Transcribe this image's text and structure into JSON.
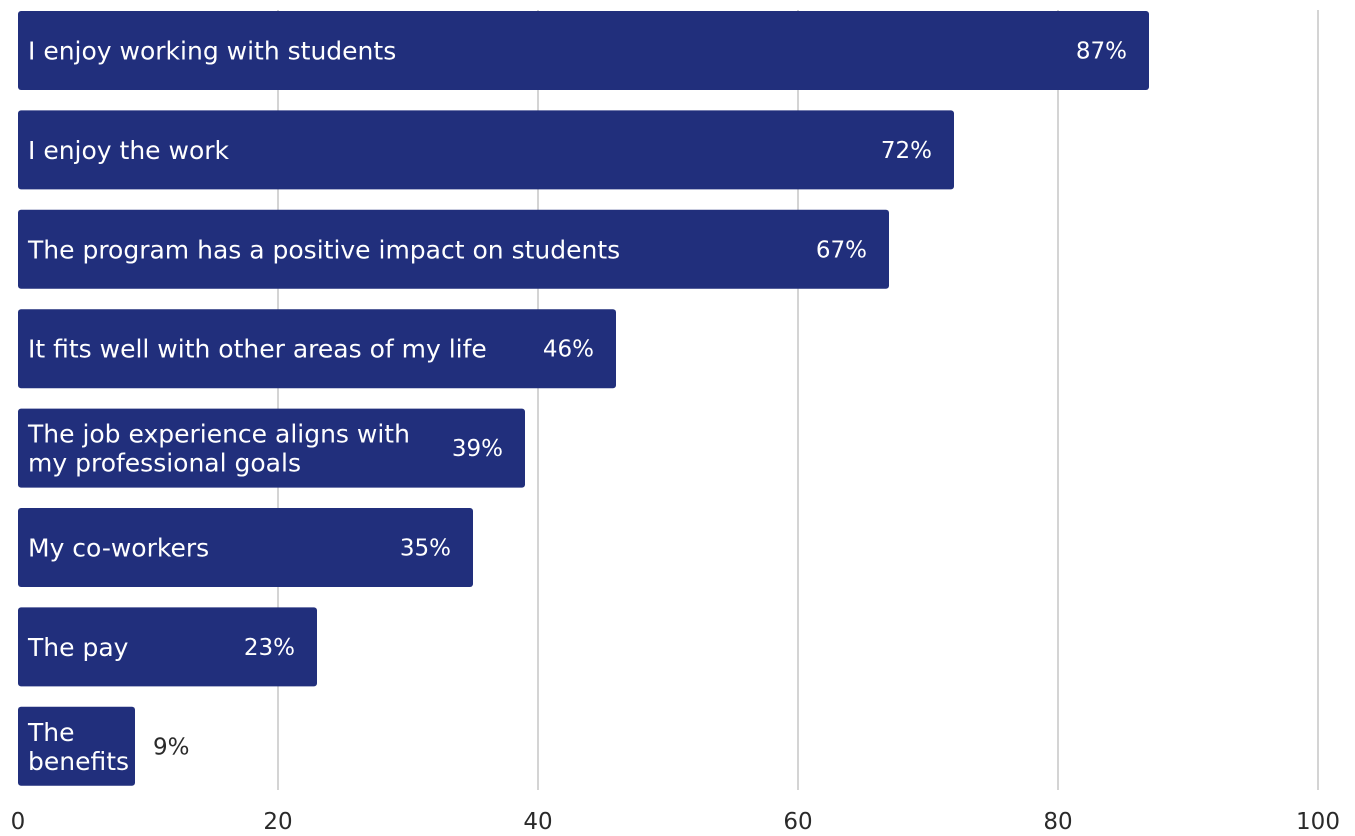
{
  "chart_data": {
    "type": "bar",
    "orientation": "horizontal",
    "categories": [
      [
        "I enjoy working with students"
      ],
      [
        "I enjoy the work"
      ],
      [
        "The program has a positive impact on students"
      ],
      [
        "It fits well with other areas of my life"
      ],
      [
        "The job experience aligns with",
        "my professional goals"
      ],
      [
        "My co-workers"
      ],
      [
        "The pay"
      ],
      [
        "The",
        "benefits"
      ]
    ],
    "values": [
      87,
      72,
      67,
      46,
      39,
      35,
      23,
      9
    ],
    "value_labels": [
      "87%",
      "72%",
      "67%",
      "46%",
      "39%",
      "35%",
      "23%",
      "9%"
    ],
    "xlim": [
      0,
      100
    ],
    "x_ticks": [
      0,
      20,
      40,
      60,
      80,
      100
    ],
    "grid": true,
    "title": "",
    "xlabel": "",
    "ylabel": "",
    "colors": {
      "bar": "#212f7c",
      "grid": "#d4d4d4",
      "text_on_bar": "#ffffff",
      "text": "#2a2a2a"
    }
  }
}
